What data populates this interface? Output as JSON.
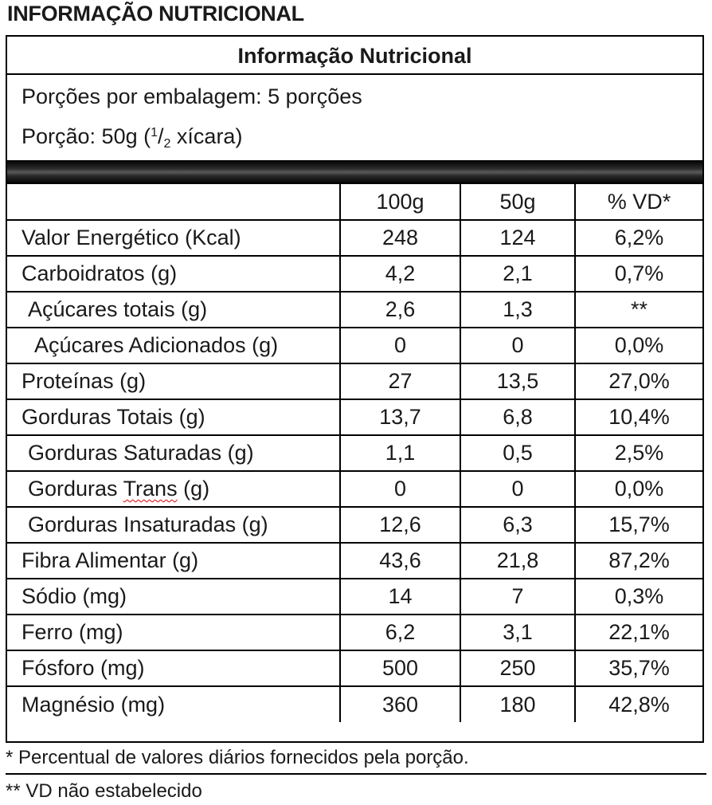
{
  "heading": "INFORMAÇÃO NUTRICIONAL",
  "table_title": "Informação Nutricional",
  "portions_line": "Porções por embalagem: 5 porções",
  "portion_prefix": "Porção: 50g (",
  "portion_num": "1",
  "portion_slash": "/",
  "portion_den": "2",
  "portion_suffix": " xícara)",
  "columns": [
    "",
    "100g",
    "50g",
    "% VD*"
  ],
  "rows": [
    {
      "label": "Valor Energético (Kcal)",
      "v100": "248",
      "v50": "124",
      "vd": "6,2%"
    },
    {
      "label": "Carboidratos (g)",
      "v100": "4,2",
      "v50": "2,1",
      "vd": "0,7%"
    },
    {
      "label": "Açúcares totais (g)",
      "v100": "2,6",
      "v50": "1,3",
      "vd": "**"
    },
    {
      "label": "Açúcares Adicionados (g)",
      "v100": "0",
      "v50": "0",
      "vd": "0,0%"
    },
    {
      "label": "Proteínas (g)",
      "v100": "27",
      "v50": "13,5",
      "vd": "27,0%"
    },
    {
      "label": "Gorduras Totais (g)",
      "v100": "13,7",
      "v50": "6,8",
      "vd": "10,4%"
    },
    {
      "label": "Gorduras Saturadas (g)",
      "v100": "1,1",
      "v50": "0,5",
      "vd": "2,5%"
    },
    {
      "label_pre": "Gorduras ",
      "label_wavy": "Trans",
      "label_post": " (g)",
      "v100": "0",
      "v50": "0",
      "vd": "0,0%"
    },
    {
      "label": "Gorduras Insaturadas (g)",
      "v100": "12,6",
      "v50": "6,3",
      "vd": "15,7%"
    },
    {
      "label": "Fibra Alimentar (g)",
      "v100": "43,6",
      "v50": "21,8",
      "vd": "87,2%"
    },
    {
      "label": "Sódio (mg)",
      "v100": "14",
      "v50": "7",
      "vd": "0,3%"
    },
    {
      "label": "Ferro (mg)",
      "v100": "6,2",
      "v50": "3,1",
      "vd": "22,1%"
    },
    {
      "label": "Fósforo (mg)",
      "v100": "500",
      "v50": "250",
      "vd": "35,7%"
    },
    {
      "label": "Magnésio (mg)",
      "v100": "360",
      "v50": "180",
      "vd": "42,8%"
    }
  ],
  "footnote1": "* Percentual de valores diários fornecidos pela porção.",
  "footnote2": "** VD não estabelecido"
}
